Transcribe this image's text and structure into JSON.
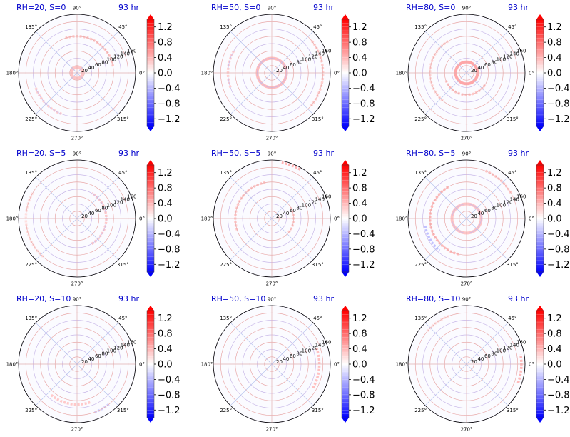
{
  "chart_data": {
    "type": "polar-heatmap-grid",
    "time_label": "93 hr",
    "angle_tick_labels": [
      "0°",
      "45°",
      "90°",
      "135°",
      "180°",
      "225°",
      "270°",
      "315°"
    ],
    "angle_tick_values_deg": [
      0,
      45,
      90,
      135,
      180,
      225,
      270,
      315
    ],
    "radial_tick_labels": [
      "20",
      "40",
      "60",
      "80",
      "100",
      "120",
      "140",
      "160"
    ],
    "radial_tick_values": [
      20,
      40,
      60,
      80,
      100,
      120,
      140,
      160
    ],
    "r_max": 160,
    "colorbar": {
      "colormap": "bwr",
      "tick_labels": [
        "1.2",
        "0.8",
        "0.4",
        "0.0",
        "−0.4",
        "−0.8",
        "−1.2"
      ],
      "tick_values": [
        1.2,
        0.8,
        0.4,
        0.0,
        -0.4,
        -0.8,
        -1.2
      ],
      "vmin": -1.4,
      "vmax": 1.4,
      "extend": "both"
    },
    "panels": [
      {
        "title": "RH=20, S=0",
        "rows": 0,
        "cols": 0
      },
      {
        "title": "RH=50, S=0",
        "rows": 0,
        "cols": 1
      },
      {
        "title": "RH=80, S=0",
        "rows": 0,
        "cols": 2
      },
      {
        "title": "RH=20, S=5",
        "rows": 1,
        "cols": 0
      },
      {
        "title": "RH=50, S=5",
        "rows": 1,
        "cols": 1
      },
      {
        "title": "RH=80, S=5",
        "rows": 1,
        "cols": 2
      },
      {
        "title": "RH=20, S=10",
        "rows": 2,
        "cols": 0
      },
      {
        "title": "RH=50, S=10",
        "rows": 2,
        "cols": 1
      },
      {
        "title": "RH=80, S=10",
        "rows": 2,
        "cols": 2
      }
    ],
    "features": [
      [
        {
          "r": 15,
          "a0": 0,
          "a1": 360,
          "v": 0.4
        },
        {
          "r": 100,
          "a0": 10,
          "a1": 110,
          "v": 0.35
        },
        {
          "r": 120,
          "a0": 200,
          "a1": 250,
          "v": 0.3
        }
      ],
      [
        {
          "r": 40,
          "a0": 0,
          "a1": 360,
          "v": 0.45
        },
        {
          "r": 140,
          "a0": -40,
          "a1": 40,
          "v": 0.3
        },
        {
          "r": 120,
          "a0": 150,
          "a1": 200,
          "v": 0.3
        }
      ],
      [
        {
          "r": 30,
          "a0": 0,
          "a1": 360,
          "v": 0.6
        },
        {
          "r": 60,
          "a0": 200,
          "a1": 330,
          "v": 0.35
        },
        {
          "r": 100,
          "a0": 120,
          "a1": 230,
          "v": 0.25
        }
      ],
      [
        {
          "r": 80,
          "a0": -60,
          "a1": 60,
          "v": 0.35
        },
        {
          "r": 140,
          "a0": 150,
          "a1": 230,
          "v": 0.2
        }
      ],
      [
        {
          "r": 100,
          "a0": 100,
          "a1": 200,
          "v": 0.35
        },
        {
          "r": 60,
          "a0": -40,
          "a1": 30,
          "v": 0.3
        },
        {
          "r": 155,
          "a0": 60,
          "a1": 80,
          "v": 0.5
        }
      ],
      [
        {
          "r": 100,
          "a0": 120,
          "a1": 260,
          "v": 0.45
        },
        {
          "r": 40,
          "a0": 0,
          "a1": 360,
          "v": 0.4
        },
        {
          "r": 115,
          "a0": 190,
          "a1": 230,
          "v": -0.4
        },
        {
          "r": 140,
          "a0": 30,
          "a1": 70,
          "v": 0.35
        }
      ],
      [
        {
          "r": 110,
          "a0": 230,
          "a1": 290,
          "v": 0.35
        },
        {
          "r": 140,
          "a0": 290,
          "a1": 310,
          "v": -0.3
        }
      ],
      [
        {
          "r": 130,
          "a0": -30,
          "a1": 20,
          "v": 0.4
        }
      ],
      [
        {
          "r": 150,
          "a0": -20,
          "a1": 10,
          "v": 0.45
        },
        {
          "r": 140,
          "a0": 110,
          "a1": 140,
          "v": 0.2
        }
      ]
    ]
  }
}
